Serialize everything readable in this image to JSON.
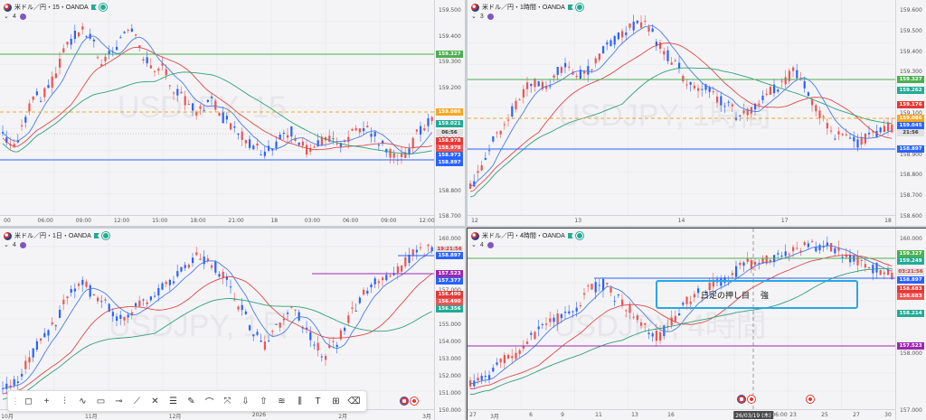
{
  "panes": [
    {
      "id": "p15",
      "title": "米ドル／円・15・OANDA",
      "indicator_count": "4",
      "watermark": "USDJPY, 15",
      "y_ticks": [
        "159.500",
        "159.400",
        "159.300",
        "159.200",
        "159.100",
        "159.000",
        "158.900",
        "158.800",
        "158.700"
      ],
      "labels": [
        {
          "text": "159.327",
          "color": "#4caf50"
        },
        {
          "text": "159.086",
          "color": "#f5a623"
        },
        {
          "text": "159.021",
          "color": "#22ab94"
        },
        {
          "text": "06:56",
          "color": "#e0e0e0",
          "fg": "#333"
        },
        {
          "text": "158.978",
          "color": "#e53935"
        },
        {
          "text": "158.978",
          "color": "#ef5350"
        },
        {
          "text": "158.973",
          "color": "#2962ff"
        },
        {
          "text": "158.897",
          "color": "#2962ff"
        }
      ],
      "x_ticks": [
        "00",
        "06:00",
        "09:00",
        "12:00",
        "15:00",
        "18:00",
        "21:00",
        "18",
        "03:00",
        "06:00",
        "09:00",
        "12:00"
      ]
    },
    {
      "id": "p1h",
      "title": "米ドル／円・1時間・OANDA",
      "indicator_count": "3",
      "watermark": "USDJPY, 1時間",
      "y_ticks": [
        "159.600",
        "159.500",
        "159.400",
        "159.300",
        "159.200",
        "159.100",
        "159.000",
        "158.900",
        "158.800",
        "158.700",
        "158.600"
      ],
      "labels": [
        {
          "text": "159.327",
          "color": "#4caf50"
        },
        {
          "text": "159.262",
          "color": "#22ab94"
        },
        {
          "text": "159.176",
          "color": "#e53935"
        },
        {
          "text": "159.086",
          "color": "#f5a623"
        },
        {
          "text": "159.045",
          "color": "#2962ff"
        },
        {
          "text": "21:56",
          "color": "#e0e0e0",
          "fg": "#333"
        },
        {
          "text": "158.897",
          "color": "#2962ff"
        }
      ],
      "x_ticks": [
        "12",
        "13",
        "14",
        "17",
        "18"
      ]
    },
    {
      "id": "p1d",
      "title": "米ドル／円・1日・OANDA",
      "indicator_count": "4",
      "watermark": "USDJPY, 1日",
      "y_ticks": [
        "160.000",
        "159.000",
        "158.000",
        "157.000",
        "156.000",
        "155.000",
        "154.000",
        "153.000",
        "152.000",
        "151.000",
        "150.000"
      ],
      "labels": [
        {
          "text": "19:21:56",
          "color": "#e0e0e0",
          "fg": "#d32f2f"
        },
        {
          "text": "158.897",
          "color": "#2962ff"
        },
        {
          "text": "157.523",
          "color": "#9c27b0"
        },
        {
          "text": "157.377",
          "color": "#2962ff"
        },
        {
          "text": "156.490",
          "color": "#e53935"
        },
        {
          "text": "156.490",
          "color": "#ef5350"
        },
        {
          "text": "156.356",
          "color": "#22ab94"
        }
      ],
      "x_ticks": [
        "10月",
        "11月",
        "12月",
        "2026",
        "2月",
        "3月"
      ]
    },
    {
      "id": "p4h",
      "title": "米ドル／円・4時間・OANDA",
      "indicator_count": "4",
      "watermark": "USDJPY, 4時間",
      "y_ticks": [
        "160.000",
        "159.000",
        "158.000",
        "157.000"
      ],
      "labels": [
        {
          "text": "159.327",
          "color": "#4caf50"
        },
        {
          "text": "159.249",
          "color": "#22ab94"
        },
        {
          "text": "03:21:56",
          "color": "#e0e0e0",
          "fg": "#d32f2f"
        },
        {
          "text": "158.897",
          "color": "#2962ff"
        },
        {
          "text": "158.683",
          "color": "#e53935"
        },
        {
          "text": "158.683",
          "color": "#ef5350"
        },
        {
          "text": "158.214",
          "color": "#22ab94"
        },
        {
          "text": "157.523",
          "color": "#9c27b0"
        }
      ],
      "x_ticks": [
        "27",
        "3月",
        "6",
        "9",
        "11",
        "13",
        "16",
        "26/03/19 (木)",
        "06:00",
        "23",
        "25",
        "27",
        "30"
      ],
      "annotation": {
        "text": "日足の押し目",
        "suffix": "強"
      }
    }
  ],
  "toolbar": {
    "items": [
      "cursor-square",
      "crosshair",
      "vertical-line",
      "path",
      "rectangle",
      "horizontal-ray",
      "trend-line",
      "extended-line",
      "parallel-channel",
      "pen",
      "brush",
      "measure",
      "arrow-down",
      "arrow-up",
      "fib",
      "horizontal-lines",
      "text",
      "box-plus",
      "erase"
    ],
    "glyphs": [
      "◻",
      "+",
      "⫶",
      "∿",
      "▭",
      "⊸",
      "⟋",
      "✕",
      "☰",
      "✎",
      "⌒",
      "⤧",
      "⇩",
      "⇧",
      "≋",
      "⫼",
      "T",
      "⊞",
      "⌫"
    ]
  },
  "colors": {
    "up": "#2962ff",
    "down": "#ef5350",
    "ma_fast": "#4a7be8",
    "ma_mid": "#e04848",
    "ma_slow": "#2fa078",
    "hline_green": "#4caf50",
    "hline_blue": "#2962ff",
    "hline_purple": "#9c27b0",
    "hline_orange": "#f5a623"
  }
}
